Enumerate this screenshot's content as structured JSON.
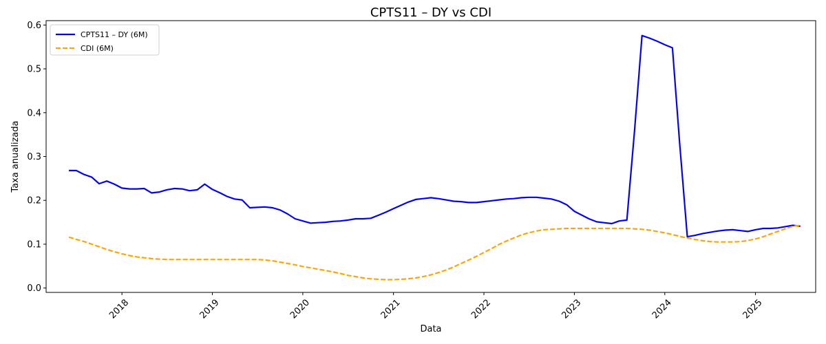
{
  "chart_data": {
    "type": "line",
    "title": "CPTS11 – DY vs CDI",
    "xlabel": "Data",
    "ylabel": "Taxa anualizada",
    "xlim": [
      "2017-03-01",
      "2025-09-01"
    ],
    "ylim": [
      -0.01,
      0.61
    ],
    "yticks": [
      0.0,
      0.1,
      0.2,
      0.3,
      0.4,
      0.5,
      0.6
    ],
    "ytick_labels": [
      "0.0",
      "0.1",
      "0.2",
      "0.3",
      "0.4",
      "0.5",
      "0.6"
    ],
    "xticks": [
      "2018-01-01",
      "2019-01-01",
      "2020-01-01",
      "2021-01-01",
      "2022-01-01",
      "2023-01-01",
      "2024-01-01",
      "2025-01-01"
    ],
    "xtick_labels": [
      "2018",
      "2019",
      "2020",
      "2021",
      "2022",
      "2023",
      "2024",
      "2025"
    ],
    "grid": false,
    "legend": "top-left",
    "series": [
      {
        "name": "CPTS11 – DY (6M)",
        "color": "#0000ff",
        "style": "solid",
        "x": [
          "2017-06-01",
          "2017-07-01",
          "2017-08-01",
          "2017-09-01",
          "2017-10-01",
          "2017-11-01",
          "2017-12-01",
          "2018-01-01",
          "2018-02-01",
          "2018-03-01",
          "2018-04-01",
          "2018-05-01",
          "2018-06-01",
          "2018-07-01",
          "2018-08-01",
          "2018-09-01",
          "2018-10-01",
          "2018-11-01",
          "2018-12-01",
          "2019-01-01",
          "2019-02-01",
          "2019-03-01",
          "2019-04-01",
          "2019-05-01",
          "2019-06-01",
          "2019-07-01",
          "2019-08-01",
          "2019-09-01",
          "2019-10-01",
          "2019-11-01",
          "2019-12-01",
          "2020-01-01",
          "2020-02-01",
          "2020-03-01",
          "2020-04-01",
          "2020-05-01",
          "2020-06-01",
          "2020-07-01",
          "2020-08-01",
          "2020-09-01",
          "2020-10-01",
          "2020-11-01",
          "2020-12-01",
          "2021-01-01",
          "2021-02-01",
          "2021-03-01",
          "2021-04-01",
          "2021-05-01",
          "2021-06-01",
          "2021-07-01",
          "2021-08-01",
          "2021-09-01",
          "2021-10-01",
          "2021-11-01",
          "2021-12-01",
          "2022-01-01",
          "2022-02-01",
          "2022-03-01",
          "2022-04-01",
          "2022-05-01",
          "2022-06-01",
          "2022-07-01",
          "2022-08-01",
          "2022-09-01",
          "2022-10-01",
          "2022-11-01",
          "2022-12-01",
          "2023-01-01",
          "2023-02-01",
          "2023-03-01",
          "2023-04-01",
          "2023-05-01",
          "2023-06-01",
          "2023-07-01",
          "2023-08-01",
          "2023-09-01",
          "2023-10-01",
          "2023-11-01",
          "2023-12-01",
          "2024-01-01",
          "2024-02-01",
          "2024-03-01",
          "2024-04-01",
          "2024-05-01",
          "2024-06-01",
          "2024-07-01",
          "2024-08-01",
          "2024-09-01",
          "2024-10-01",
          "2024-11-01",
          "2024-12-01",
          "2025-01-01",
          "2025-02-01",
          "2025-03-01",
          "2025-04-01",
          "2025-05-01",
          "2025-06-01",
          "2025-07-01"
        ],
        "values": [
          0.268,
          0.268,
          0.259,
          0.253,
          0.238,
          0.244,
          0.237,
          0.228,
          0.226,
          0.226,
          0.227,
          0.217,
          0.219,
          0.224,
          0.227,
          0.226,
          0.222,
          0.224,
          0.237,
          0.225,
          0.217,
          0.209,
          0.203,
          0.201,
          0.183,
          0.184,
          0.185,
          0.183,
          0.178,
          0.169,
          0.158,
          0.153,
          0.148,
          0.149,
          0.15,
          0.152,
          0.153,
          0.155,
          0.158,
          0.158,
          0.159,
          0.166,
          0.173,
          0.181,
          0.189,
          0.196,
          0.202,
          0.204,
          0.206,
          0.204,
          0.201,
          0.198,
          0.197,
          0.195,
          0.195,
          0.197,
          0.199,
          0.201,
          0.203,
          0.204,
          0.206,
          0.207,
          0.207,
          0.205,
          0.203,
          0.198,
          0.19,
          0.175,
          0.166,
          0.158,
          0.151,
          0.149,
          0.147,
          0.153,
          0.155,
          0.36,
          0.576,
          0.57,
          0.563,
          0.555,
          0.548,
          0.33,
          0.117,
          0.12,
          0.124,
          0.127,
          0.13,
          0.132,
          0.133,
          0.131,
          0.129,
          0.133,
          0.136,
          0.136,
          0.137,
          0.14,
          0.143,
          0.141
        ]
      },
      {
        "name": "CDI (6M)",
        "color": "#ffa500",
        "style": "dashed",
        "x": [
          "2017-06-01",
          "2017-07-01",
          "2017-08-01",
          "2017-09-01",
          "2017-10-01",
          "2017-11-01",
          "2017-12-01",
          "2018-01-01",
          "2018-02-01",
          "2018-03-01",
          "2018-04-01",
          "2018-05-01",
          "2018-06-01",
          "2018-07-01",
          "2018-08-01",
          "2018-09-01",
          "2018-10-01",
          "2018-11-01",
          "2018-12-01",
          "2019-01-01",
          "2019-02-01",
          "2019-03-01",
          "2019-04-01",
          "2019-05-01",
          "2019-06-01",
          "2019-07-01",
          "2019-08-01",
          "2019-09-01",
          "2019-10-01",
          "2019-11-01",
          "2019-12-01",
          "2020-01-01",
          "2020-02-01",
          "2020-03-01",
          "2020-04-01",
          "2020-05-01",
          "2020-06-01",
          "2020-07-01",
          "2020-08-01",
          "2020-09-01",
          "2020-10-01",
          "2020-11-01",
          "2020-12-01",
          "2021-01-01",
          "2021-02-01",
          "2021-03-01",
          "2021-04-01",
          "2021-05-01",
          "2021-06-01",
          "2021-07-01",
          "2021-08-01",
          "2021-09-01",
          "2021-10-01",
          "2021-11-01",
          "2021-12-01",
          "2022-01-01",
          "2022-02-01",
          "2022-03-01",
          "2022-04-01",
          "2022-05-01",
          "2022-06-01",
          "2022-07-01",
          "2022-08-01",
          "2022-09-01",
          "2022-10-01",
          "2022-11-01",
          "2022-12-01",
          "2023-01-01",
          "2023-02-01",
          "2023-03-01",
          "2023-04-01",
          "2023-05-01",
          "2023-06-01",
          "2023-07-01",
          "2023-08-01",
          "2023-09-01",
          "2023-10-01",
          "2023-11-01",
          "2023-12-01",
          "2024-01-01",
          "2024-02-01",
          "2024-03-01",
          "2024-04-01",
          "2024-05-01",
          "2024-06-01",
          "2024-07-01",
          "2024-08-01",
          "2024-09-01",
          "2024-10-01",
          "2024-11-01",
          "2024-12-01",
          "2025-01-01",
          "2025-02-01",
          "2025-03-01",
          "2025-04-01",
          "2025-05-01",
          "2025-06-01",
          "2025-07-01"
        ],
        "values": [
          0.116,
          0.111,
          0.106,
          0.1,
          0.094,
          0.088,
          0.083,
          0.078,
          0.074,
          0.071,
          0.069,
          0.067,
          0.066,
          0.065,
          0.065,
          0.065,
          0.065,
          0.065,
          0.065,
          0.065,
          0.065,
          0.065,
          0.065,
          0.065,
          0.065,
          0.065,
          0.064,
          0.062,
          0.059,
          0.056,
          0.053,
          0.049,
          0.046,
          0.043,
          0.04,
          0.037,
          0.033,
          0.029,
          0.026,
          0.023,
          0.021,
          0.02,
          0.019,
          0.019,
          0.02,
          0.021,
          0.023,
          0.026,
          0.03,
          0.035,
          0.041,
          0.048,
          0.056,
          0.064,
          0.072,
          0.081,
          0.09,
          0.099,
          0.107,
          0.114,
          0.121,
          0.126,
          0.13,
          0.133,
          0.134,
          0.135,
          0.136,
          0.136,
          0.136,
          0.136,
          0.136,
          0.136,
          0.136,
          0.136,
          0.136,
          0.135,
          0.134,
          0.132,
          0.129,
          0.126,
          0.122,
          0.118,
          0.114,
          0.111,
          0.108,
          0.106,
          0.105,
          0.105,
          0.105,
          0.106,
          0.108,
          0.112,
          0.117,
          0.123,
          0.129,
          0.135,
          0.141,
          0.143
        ]
      }
    ]
  }
}
